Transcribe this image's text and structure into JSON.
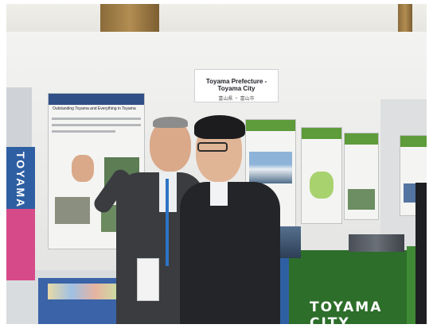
{
  "scene": {
    "description_tags": [
      "exhibition-booth",
      "two-men-talking",
      "posters"
    ],
    "sign_title": "Toyama Prefecture - Toyama City",
    "sign_subtitle": "富山県 ・ 富山市",
    "poster_left_title": "Outstanding Toyama and Everything in Toyama",
    "banner_text": "TOYAMA CITY",
    "side_banner_text": "TOYAMA",
    "colors": {
      "suit": "#2a2d33",
      "wall": "#ececea",
      "booth_green": "#2d6e2a",
      "booth_blue": "#2f4f86"
    }
  }
}
